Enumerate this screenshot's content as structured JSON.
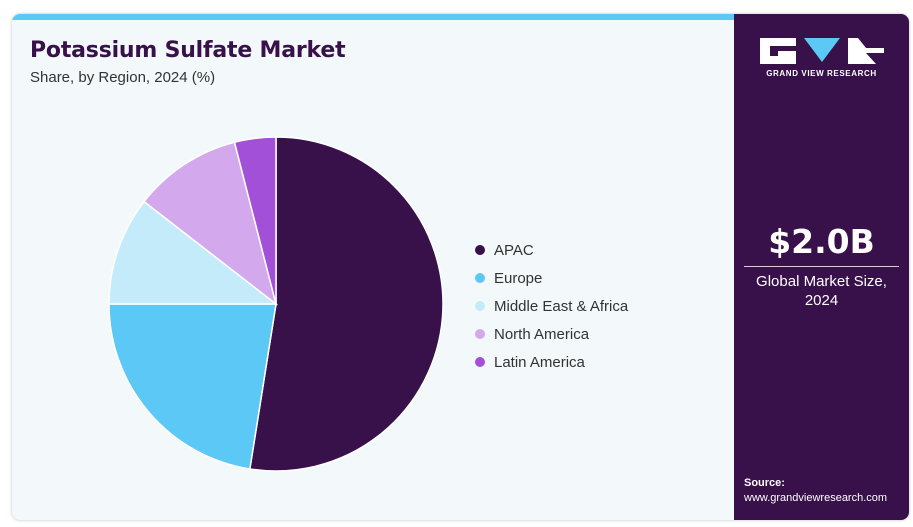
{
  "header": {
    "title": "Potassium Sulfate Market",
    "subtitle": "Share, by Region, 2024 (%)"
  },
  "chart_data": {
    "type": "pie",
    "title": "Potassium Sulfate Market",
    "subtitle": "Share, by Region, 2024 (%)",
    "categories": [
      "APAC",
      "Europe",
      "Middle East & Africa",
      "North America",
      "Latin America"
    ],
    "values": [
      52.5,
      22.5,
      10.5,
      10.5,
      4.0
    ],
    "colors": [
      "#38104a",
      "#5bc8f5",
      "#c4ebfa",
      "#d4a8ec",
      "#a250d8"
    ],
    "legend_position": "right",
    "start_angle_deg": 0,
    "direction": "clockwise"
  },
  "sidebar": {
    "brand_name": "GRAND VIEW RESEARCH",
    "market_size_value": "$2.0B",
    "market_size_label": "Global Market Size, 2024",
    "source_label": "Source:",
    "source_url": "www.grandviewresearch.com"
  },
  "colors": {
    "brand_purple": "#38104a",
    "accent_blue": "#5bc8f5",
    "background": "#f3f8fa"
  }
}
